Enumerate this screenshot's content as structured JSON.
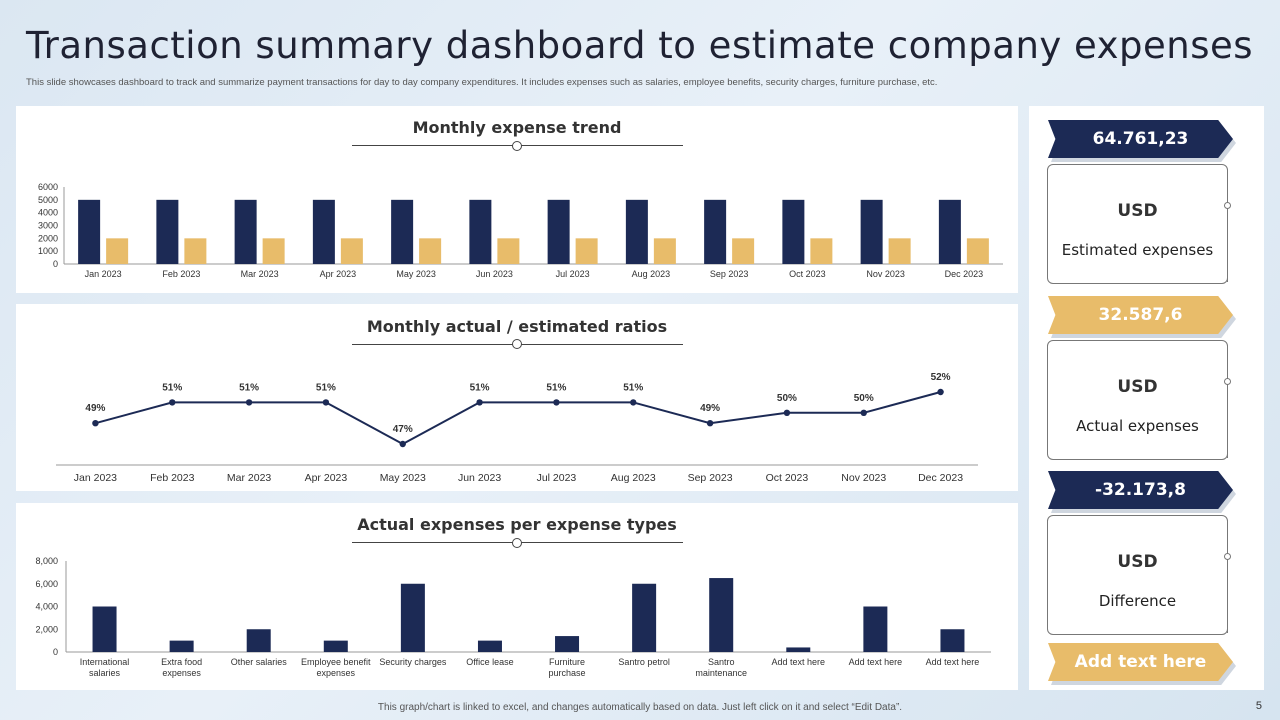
{
  "page": {
    "title": "Transaction summary dashboard to estimate company expenses",
    "subtitle": "This slide showcases dashboard to track and summarize payment transactions for day to day company expenditures. It includes expenses such as salaries, employee benefits, security charges, furniture purchase, etc.",
    "footer": "This graph/chart is linked to excel, and changes automatically based on data. Just left click on it and select “Edit Data”.",
    "page_number": "5"
  },
  "colors": {
    "navy": "#1c2a55",
    "gold": "#e8bc6a"
  },
  "chart_data": [
    {
      "type": "bar",
      "title": "Monthly expense trend",
      "categories": [
        "Jan 2023",
        "Feb 2023",
        "Mar 2023",
        "Apr 2023",
        "May 2023",
        "Jun 2023",
        "Jul 2023",
        "Aug 2023",
        "Sep 2023",
        "Oct 2023",
        "Nov 2023",
        "Dec 2023"
      ],
      "series": [
        {
          "values": [
            5000,
            5000,
            5000,
            5000,
            5000,
            5000,
            5000,
            5000,
            5000,
            5000,
            5000,
            5000
          ],
          "color": "#1c2a55"
        },
        {
          "values": [
            2000,
            2000,
            2000,
            2000,
            2000,
            2000,
            2000,
            2000,
            2000,
            2000,
            2000,
            2000
          ],
          "color": "#e8bc6a"
        }
      ],
      "yticks": [
        "0",
        "1000",
        "2000",
        "3000",
        "4000",
        "5000",
        "6000"
      ],
      "ylim": [
        0,
        6000
      ],
      "grid": false
    },
    {
      "type": "line",
      "title": "Monthly actual / estimated ratios",
      "categories": [
        "Jan 2023",
        "Feb 2023",
        "Mar 2023",
        "Apr 2023",
        "May 2023",
        "Jun 2023",
        "Jul 2023",
        "Aug 2023",
        "Sep 2023",
        "Oct 2023",
        "Nov 2023",
        "Dec 2023"
      ],
      "values": [
        49,
        51,
        51,
        51,
        47,
        51,
        51,
        51,
        49,
        50,
        50,
        52
      ],
      "labels": [
        "49%",
        "51%",
        "51%",
        "51%",
        "47%",
        "51%",
        "51%",
        "51%",
        "49%",
        "50%",
        "50%",
        "52%"
      ],
      "color": "#1c2a55"
    },
    {
      "type": "bar",
      "title": "Actual expenses per expense types",
      "categories": [
        [
          "International",
          "salaries"
        ],
        [
          "Extra food",
          "expenses"
        ],
        [
          "Other salaries"
        ],
        [
          "Employee benefit",
          "expenses"
        ],
        [
          "Security charges"
        ],
        [
          "Office lease"
        ],
        [
          "Furniture",
          "purchase"
        ],
        [
          "Santro petrol"
        ],
        [
          "Santro",
          "maintenance"
        ],
        [
          "Add text here"
        ],
        [
          "Add text here"
        ],
        [
          "Add text here"
        ]
      ],
      "values": [
        4000,
        1000,
        2000,
        1000,
        6000,
        1000,
        1400,
        6000,
        6500,
        400,
        4000,
        2000
      ],
      "yticks": [
        "0",
        "2,000",
        "4,000",
        "6,000",
        "8,000"
      ],
      "ylim": [
        0,
        8000
      ],
      "color": "#1c2a55"
    }
  ],
  "kpis": [
    {
      "value": "64.761,23",
      "currency": "USD",
      "label": "Estimated expenses",
      "style": "navy"
    },
    {
      "value": "32.587,6",
      "currency": "USD",
      "label": "Actual expenses",
      "style": "gold"
    },
    {
      "value": "-32.173,8",
      "currency": "USD",
      "label": "Difference",
      "style": "navy"
    }
  ],
  "add_text_button": "Add text here"
}
